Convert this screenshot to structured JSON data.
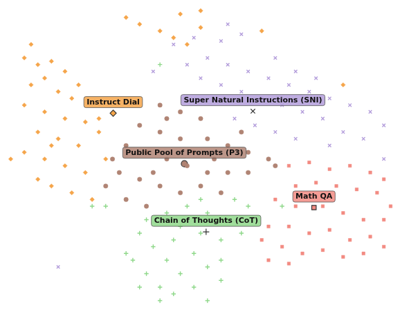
{
  "chart_data": {
    "type": "scatter",
    "xlim": [
      0,
      578
    ],
    "ylim": [
      0,
      448
    ],
    "grid": false,
    "tick_labels": false,
    "series": [
      {
        "name": "Instruct Dial",
        "color": "#f5a54a",
        "marker": "diamond",
        "centroid": [
          161,
          286
        ],
        "points": [
          [
            40,
            388
          ],
          [
            30,
            368
          ],
          [
            50,
            358
          ],
          [
            70,
            363
          ],
          [
            90,
            348
          ],
          [
            60,
            338
          ],
          [
            40,
            328
          ],
          [
            80,
            318
          ],
          [
            100,
            308
          ],
          [
            30,
            298
          ],
          [
            60,
            288
          ],
          [
            90,
            278
          ],
          [
            120,
            273
          ],
          [
            50,
            258
          ],
          [
            80,
            248
          ],
          [
            110,
            238
          ],
          [
            140,
            258
          ],
          [
            30,
            228
          ],
          [
            60,
            218
          ],
          [
            90,
            208
          ],
          [
            120,
            198
          ],
          [
            70,
            178
          ],
          [
            100,
            168
          ],
          [
            130,
            158
          ],
          [
            50,
            188
          ],
          [
            150,
            218
          ],
          [
            10,
            218
          ],
          [
            110,
            328
          ],
          [
            140,
            278
          ],
          [
            70,
            238
          ],
          [
            180,
            428
          ],
          [
            200,
            418
          ],
          [
            230,
            408
          ],
          [
            260,
            433
          ],
          [
            290,
            438
          ],
          [
            290,
            413
          ],
          [
            250,
            398
          ],
          [
            380,
            408
          ],
          [
            500,
            328
          ],
          [
            270,
            388
          ]
        ]
      },
      {
        "name": "Super Natural Instructions (SNI)",
        "color": "#b39ddb",
        "marker": "x",
        "centroid": [
          367,
          289
        ],
        "points": [
          [
            250,
            388
          ],
          [
            280,
            398
          ],
          [
            320,
            393
          ],
          [
            350,
            403
          ],
          [
            300,
            368
          ],
          [
            330,
            358
          ],
          [
            360,
            348
          ],
          [
            390,
            338
          ],
          [
            420,
            328
          ],
          [
            450,
            318
          ],
          [
            480,
            308
          ],
          [
            510,
            298
          ],
          [
            540,
            288
          ],
          [
            560,
            268
          ],
          [
            530,
            248
          ],
          [
            500,
            258
          ],
          [
            470,
            278
          ],
          [
            440,
            288
          ],
          [
            410,
            298
          ],
          [
            380,
            308
          ],
          [
            350,
            318
          ],
          [
            320,
            328
          ],
          [
            290,
            338
          ],
          [
            270,
            358
          ],
          [
            400,
            368
          ],
          [
            430,
            348
          ],
          [
            460,
            338
          ],
          [
            340,
            278
          ],
          [
            370,
            268
          ],
          [
            400,
            258
          ],
          [
            430,
            248
          ],
          [
            330,
            418
          ],
          [
            560,
            218
          ],
          [
            80,
            58
          ],
          [
            220,
            348
          ],
          [
            480,
            238
          ]
        ]
      },
      {
        "name": "Public Pool of Prompts (P3)",
        "color": "#b08474",
        "marker": "circle",
        "centroid": [
          266,
          211
        ],
        "points": [
          [
            230,
            298
          ],
          [
            260,
            288
          ],
          [
            290,
            278
          ],
          [
            200,
            268
          ],
          [
            230,
            258
          ],
          [
            260,
            248
          ],
          [
            300,
            248
          ],
          [
            330,
            238
          ],
          [
            360,
            228
          ],
          [
            390,
            218
          ],
          [
            180,
            238
          ],
          [
            210,
            228
          ],
          [
            240,
            218
          ],
          [
            270,
            208
          ],
          [
            300,
            198
          ],
          [
            330,
            198
          ],
          [
            360,
            198
          ],
          [
            170,
            198
          ],
          [
            200,
            188
          ],
          [
            230,
            178
          ],
          [
            260,
            168
          ],
          [
            290,
            178
          ],
          [
            320,
            168
          ],
          [
            180,
            158
          ],
          [
            210,
            148
          ],
          [
            150,
            178
          ],
          [
            240,
            278
          ],
          [
            350,
            258
          ],
          [
            400,
            208
          ],
          [
            280,
            228
          ],
          [
            310,
            218
          ],
          [
            160,
            218
          ],
          [
            220,
            198
          ]
        ]
      },
      {
        "name": "Chain of Thoughts (CoT)",
        "color": "#8fd88a",
        "marker": "plus",
        "centroid": [
          298,
          110
        ],
        "points": [
          [
            200,
            108
          ],
          [
            220,
            88
          ],
          [
            240,
            68
          ],
          [
            260,
            48
          ],
          [
            280,
            28
          ],
          [
            300,
            8
          ],
          [
            230,
            28
          ],
          [
            210,
            48
          ],
          [
            190,
            68
          ],
          [
            250,
            98
          ],
          [
            280,
            78
          ],
          [
            300,
            58
          ],
          [
            320,
            38
          ],
          [
            270,
            148
          ],
          [
            300,
            138
          ],
          [
            330,
            128
          ],
          [
            350,
            108
          ],
          [
            320,
            98
          ],
          [
            290,
            108
          ],
          [
            260,
            118
          ],
          [
            240,
            138
          ],
          [
            210,
            128
          ],
          [
            230,
            8
          ],
          [
            250,
            18
          ],
          [
            290,
            158
          ],
          [
            340,
            158
          ],
          [
            360,
            148
          ],
          [
            200,
            28
          ],
          [
            320,
            68
          ],
          [
            180,
            78
          ],
          [
            130,
            148
          ],
          [
            410,
            148
          ],
          [
            230,
            358
          ],
          [
            150,
            148
          ]
        ]
      },
      {
        "name": "Math QA",
        "color": "#f28b82",
        "marker": "square",
        "centroid": [
          457,
          146
        ],
        "points": [
          [
            420,
            208
          ],
          [
            450,
            213
          ],
          [
            480,
            203
          ],
          [
            510,
            208
          ],
          [
            540,
            198
          ],
          [
            560,
            188
          ],
          [
            430,
            178
          ],
          [
            460,
            183
          ],
          [
            490,
            178
          ],
          [
            520,
            173
          ],
          [
            550,
            168
          ],
          [
            570,
            148
          ],
          [
            400,
            158
          ],
          [
            430,
            148
          ],
          [
            470,
            148
          ],
          [
            500,
            138
          ],
          [
            530,
            128
          ],
          [
            560,
            128
          ],
          [
            390,
            118
          ],
          [
            420,
            118
          ],
          [
            450,
            108
          ],
          [
            480,
            113
          ],
          [
            510,
            98
          ],
          [
            540,
            103
          ],
          [
            380,
            98
          ],
          [
            410,
            88
          ],
          [
            440,
            78
          ],
          [
            470,
            83
          ],
          [
            500,
            73
          ],
          [
            530,
            78
          ],
          [
            390,
            68
          ],
          [
            420,
            63
          ],
          [
            560,
            88
          ]
        ]
      }
    ]
  }
}
